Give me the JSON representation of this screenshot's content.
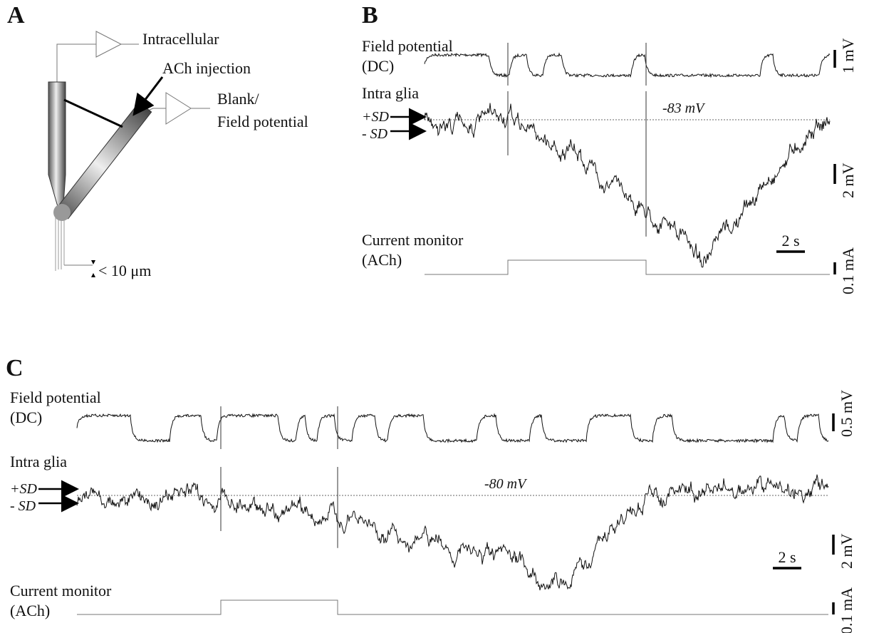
{
  "panel_a": {
    "letter": "A",
    "intracellular": "Intracellular",
    "injection": "ACh injection",
    "blank": "Blank/",
    "field": "Field potential",
    "distance": "< 10 μm"
  },
  "panel_b": {
    "letter": "B",
    "field_label": "Field potential",
    "field_sub": "(DC)",
    "glia_label": "Intra glia",
    "plus_sd": "+SD",
    "minus_sd": "- SD",
    "level": "-83 mV",
    "current_label": "Current monitor",
    "current_sub": "(ACh)",
    "field_scale": "1 mV",
    "glia_scale": "2 mV",
    "current_scale": "0.1 mA",
    "time_scale": "2 s"
  },
  "panel_c": {
    "letter": "C",
    "field_label": "Field potential",
    "field_sub": "(DC)",
    "glia_label": "Intra glia",
    "plus_sd": "+SD",
    "minus_sd": "- SD",
    "level": "-80 mV",
    "current_label": "Current monitor",
    "current_sub": "(ACh)",
    "field_scale": "0.5 mV",
    "glia_scale": "2 mV",
    "current_scale": "0.1 mA",
    "time_scale": "2 s"
  }
}
